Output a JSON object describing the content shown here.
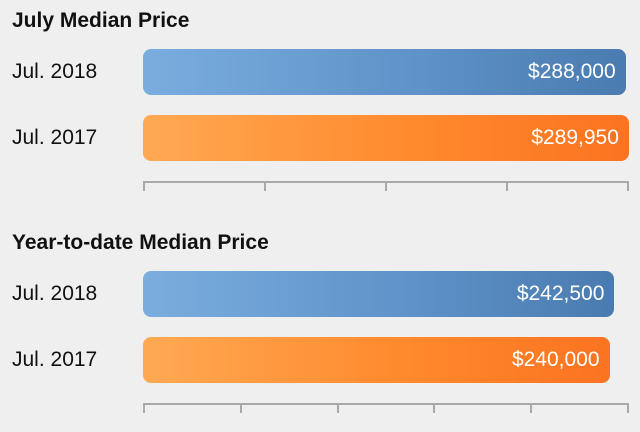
{
  "chart_data": [
    {
      "type": "bar",
      "orientation": "horizontal",
      "title": "July Median Price",
      "categories": [
        "Jul. 2018",
        "Jul. 2017"
      ],
      "values": [
        288000,
        289950
      ],
      "value_labels": [
        "$288,000",
        "$289,950"
      ],
      "xlim": [
        0,
        290000
      ],
      "tick_count": 4,
      "colors": [
        "#5f93c9",
        "#ff8a2d"
      ]
    },
    {
      "type": "bar",
      "orientation": "horizontal",
      "title": "Year-to-date Median Price",
      "categories": [
        "Jul. 2018",
        "Jul. 2017"
      ],
      "values": [
        242500,
        240000
      ],
      "value_labels": [
        "$242,500",
        "$240,000"
      ],
      "xlim": [
        0,
        250000
      ],
      "tick_count": 5,
      "colors": [
        "#5f93c9",
        "#ff8a2d"
      ]
    }
  ]
}
